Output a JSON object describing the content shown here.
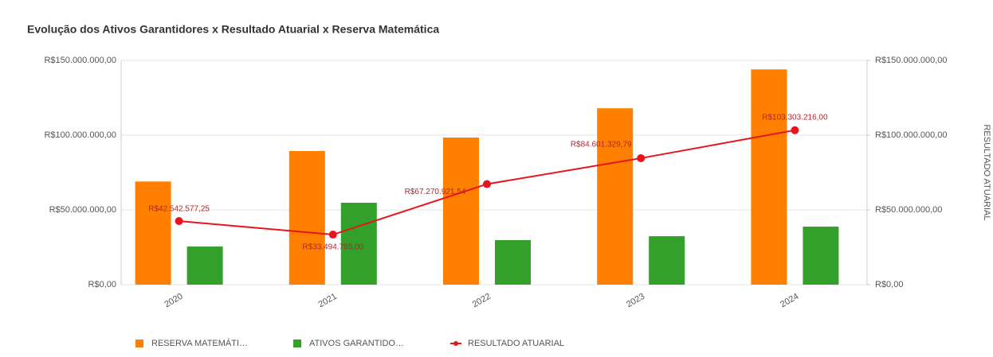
{
  "chart_data": {
    "type": "bar",
    "title": "Evolução dos Ativos Garantidores x Resultado Atuarial x Reserva Matemática",
    "y2_label": "RESULTADO ATUARIAL",
    "categories": [
      "2020",
      "2021",
      "2022",
      "2023",
      "2024"
    ],
    "series": [
      {
        "name": "RESERVA MATEMÁTI…",
        "type": "bar",
        "color": "#ff8000",
        "values": [
          69000000,
          89400000,
          98400000,
          118000000,
          144000000
        ]
      },
      {
        "name": "ATIVOS GARANTIDO…",
        "type": "bar",
        "color": "#33a02c",
        "values": [
          25500000,
          54800000,
          29800000,
          32400000,
          38800000
        ]
      },
      {
        "name": "RESULTADO ATUARIAL",
        "type": "line",
        "axis": "y2",
        "color": "#e8141c",
        "values": [
          42542577.25,
          33494785,
          67270921.54,
          84601329.79,
          103303216
        ],
        "value_labels": [
          "R$42.542.577,25",
          "R$33.494.785,00",
          "R$67.270.921,54",
          "R$84.601.329,79",
          "R$103.303.216,00"
        ]
      }
    ],
    "ylim": [
      0,
      150000000
    ],
    "yticks": [
      {
        "value": 0,
        "label": "R$0,00"
      },
      {
        "value": 50000000,
        "label": "R$50.000.000,00"
      },
      {
        "value": 100000000,
        "label": "R$100.000.000,00"
      },
      {
        "value": 150000000,
        "label": "R$150.000.000,00"
      }
    ],
    "y2lim": [
      0,
      150000000
    ],
    "y2ticks": [
      {
        "value": 0,
        "label": "R$0,00"
      },
      {
        "value": 50000000,
        "label": "R$50.000.000,00"
      },
      {
        "value": 100000000,
        "label": "R$100.000.000,00"
      },
      {
        "value": 150000000,
        "label": "R$150.000.000,00"
      }
    ],
    "grid": true
  }
}
